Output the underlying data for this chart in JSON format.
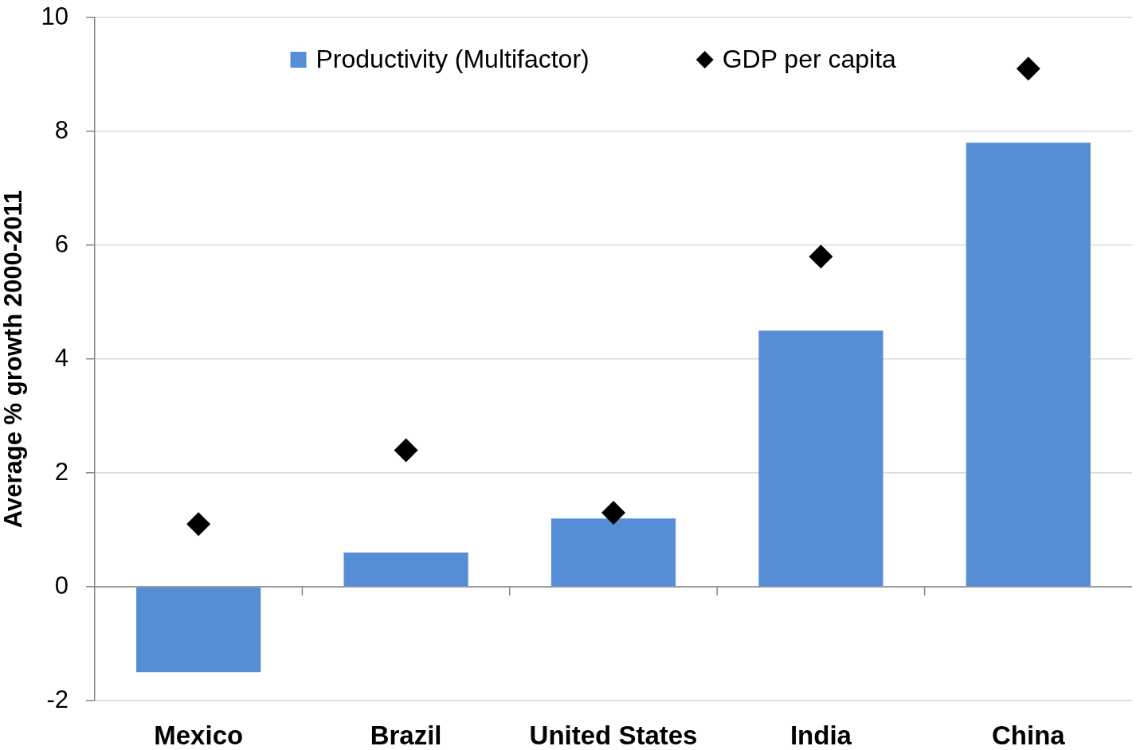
{
  "chart_data": {
    "type": "bar",
    "ylabel": "Average % growth 2000-2011",
    "categories": [
      "Mexico",
      "Brazil",
      "United States",
      "India",
      "China"
    ],
    "series": [
      {
        "name": "Productivity (Multifactor)",
        "color": "#558ed5",
        "values": [
          -1.5,
          0.6,
          1.2,
          4.5,
          7.8
        ]
      },
      {
        "name": "GDP per capita",
        "type": "scatter",
        "color": "#000000",
        "marker": "diamond",
        "x": [
          "Mexico",
          "Brazil",
          "United States",
          "India",
          "China"
        ],
        "values": [
          1.1,
          2.4,
          1.3,
          5.8,
          9.1
        ]
      }
    ],
    "ylim": [
      -2,
      10
    ],
    "yticks": [
      -2,
      0,
      2,
      4,
      6,
      8,
      10
    ],
    "grid": "y",
    "legend": "top"
  }
}
